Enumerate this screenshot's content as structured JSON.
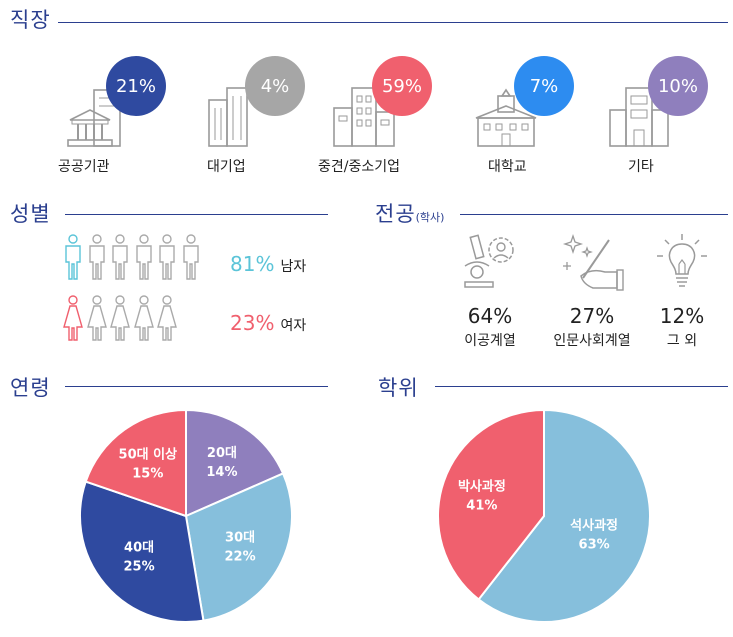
{
  "sections": {
    "workplace": "직장",
    "gender": "성별",
    "major": "전공",
    "major_sub": "(학사)",
    "age": "연령",
    "degree": "학위"
  },
  "workplace": [
    {
      "pct": "21%",
      "label": "공공기관",
      "color": "#2f4aa0",
      "icon": "public-institution-icon"
    },
    {
      "pct": "4%",
      "label": "대기업",
      "color": "#a6a6a6",
      "icon": "large-company-icon"
    },
    {
      "pct": "59%",
      "label": "중견/중소기업",
      "color": "#f0606e",
      "icon": "sme-company-icon"
    },
    {
      "pct": "7%",
      "label": "대학교",
      "color": "#2d8cf0",
      "icon": "university-icon"
    },
    {
      "pct": "10%",
      "label": "기타",
      "color": "#8f7fbd",
      "icon": "other-building-icon"
    }
  ],
  "gender": {
    "male": {
      "pct": "81%",
      "label": "남자",
      "color": "#5bc4d8"
    },
    "female": {
      "pct": "23%",
      "label": "여자",
      "color": "#f0606e"
    }
  },
  "major": [
    {
      "pct": "64%",
      "label": "이공계열",
      "icon": "science-icon"
    },
    {
      "pct": "27%",
      "label": "인문사회계열",
      "icon": "writing-icon"
    },
    {
      "pct": "12%",
      "label": "그 외",
      "icon": "lightbulb-icon"
    }
  ],
  "chart_data": [
    {
      "type": "pie",
      "title": "연령",
      "slices": [
        {
          "label": "20대",
          "value": 14,
          "color": "#8f7fbd"
        },
        {
          "label": "30대",
          "value": 22,
          "color": "#86bfdc"
        },
        {
          "label": "40대",
          "value": 25,
          "color": "#2f4aa0"
        },
        {
          "label": "50대 이상",
          "value": 15,
          "color": "#f0606e"
        }
      ]
    },
    {
      "type": "pie",
      "title": "학위",
      "slices": [
        {
          "label": "석사과정",
          "value": 63,
          "color": "#86bfdc"
        },
        {
          "label": "박사과정",
          "value": 41,
          "color": "#f0606e"
        }
      ]
    }
  ]
}
